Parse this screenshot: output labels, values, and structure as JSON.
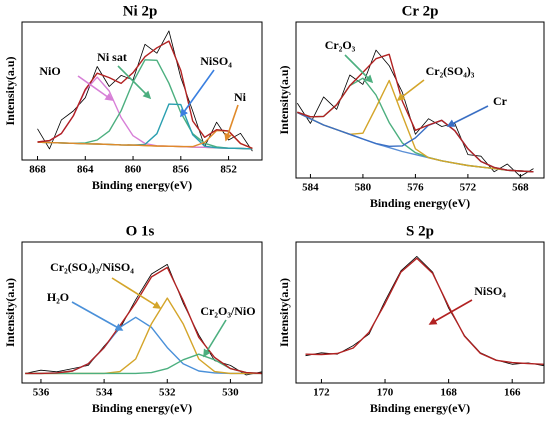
{
  "chart_data": [
    {
      "type": "line",
      "title": "Ni 2p",
      "xlabel": "Binding energy(eV)",
      "ylabel": "Intensity(a.u)",
      "xlim": [
        869.3,
        849.2
      ],
      "ylim": [
        0,
        62
      ],
      "xticks": [
        868,
        864,
        860,
        856,
        852
      ],
      "x": [
        868,
        867,
        866,
        865,
        864,
        863,
        862,
        861,
        860,
        859,
        858,
        857,
        856,
        855,
        854,
        853,
        852,
        851,
        850
      ],
      "series": [
        {
          "color": "#000000",
          "values": [
            14,
            5,
            18,
            22,
            28,
            42,
            33,
            38,
            36,
            52,
            48,
            58,
            37,
            22,
            6,
            17,
            9,
            12,
            4
          ]
        },
        {
          "color": "#d4a52a",
          "values": [
            8,
            7.8,
            7.7,
            7.5,
            7.3,
            7.2,
            7,
            6.8,
            6.7,
            6.5,
            6.3,
            6.2,
            6,
            5.8,
            5.7,
            5.5,
            5.3,
            5.2,
            5
          ]
        },
        {
          "color": "#d77fd7",
          "values": [
            8.1,
            8.7,
            11.9,
            19.8,
            31.3,
            37.2,
            31,
            19.1,
            10.9,
            7.4,
            6.4,
            6.2,
            6,
            5.8,
            5.7,
            5.5,
            5.3,
            5.2,
            5
          ]
        },
        {
          "color": "#4caf7f",
          "values": [
            8,
            7.8,
            7.7,
            7.5,
            7.7,
            9,
            13,
            22.1,
            35,
            45,
            44.8,
            34.5,
            21.3,
            11.8,
            7.5,
            5.9,
            5.3,
            5.2,
            5
          ]
        },
        {
          "color": "#2a9fb0",
          "values": [
            8,
            7.8,
            7.7,
            7.5,
            7.3,
            7.2,
            7,
            6.8,
            6.7,
            7,
            11.8,
            25.1,
            24.9,
            11.3,
            6.2,
            5.5,
            5.3,
            5.2,
            5
          ]
        },
        {
          "color": "#e08a2a",
          "values": [
            8,
            7.8,
            7.7,
            7.5,
            7.3,
            7.2,
            7,
            6.8,
            6.7,
            6.5,
            6.3,
            6.2,
            6,
            6,
            7.9,
            13.2,
            13,
            7.4,
            5.2
          ]
        },
        {
          "color": "#b22222",
          "values": [
            8.1,
            8.7,
            11.9,
            19.8,
            31.7,
            39,
            37,
            34.4,
            39.2,
            46.4,
            50.4,
            53.4,
            40.2,
            17.5,
            10.2,
            13.6,
            13,
            7.4,
            5.2
          ]
        }
      ],
      "annotations": [
        "NiO",
        "Ni sat",
        "NiSO₄",
        "Ni"
      ]
    },
    {
      "type": "line",
      "title": "Cr 2p",
      "xlabel": "Binding energy(eV)",
      "ylabel": "Intensity(a.u)",
      "xlim": [
        585.1,
        566.2
      ],
      "ylim": [
        0,
        100
      ],
      "xticks": [
        584,
        580,
        576,
        572,
        568
      ],
      "x": [
        585,
        584,
        583,
        582,
        581,
        580,
        579,
        578,
        577,
        576,
        575,
        574,
        573,
        572,
        571,
        570,
        569,
        568,
        567
      ],
      "series": [
        {
          "color": "#000000",
          "values": [
            48,
            35,
            52,
            44,
            66,
            60,
            82,
            72,
            55,
            28,
            38,
            33,
            35,
            15,
            14,
            4,
            9,
            1,
            6
          ]
        },
        {
          "color": "#5b8fd6",
          "values": [
            42,
            38,
            34,
            31,
            28,
            25,
            22,
            19.5,
            17,
            15,
            13,
            11,
            9.5,
            8,
            7,
            6,
            5,
            4.5,
            4
          ]
        },
        {
          "color": "#4caf7f",
          "values": [
            42.2,
            39.2,
            39.5,
            47,
            59.2,
            64,
            53.2,
            35.5,
            22.5,
            16.2,
            13.2,
            11,
            9.5,
            8,
            7,
            6,
            5,
            4.5,
            4
          ]
        },
        {
          "color": "#d4a52a",
          "values": [
            42,
            38,
            34,
            31,
            28,
            28.7,
            45.2,
            62.5,
            40.2,
            18.7,
            13,
            11,
            9.5,
            8,
            7,
            6,
            5,
            4.5,
            4
          ]
        },
        {
          "color": "#3a6fc4",
          "values": [
            42,
            38,
            34,
            31,
            28,
            25,
            22.1,
            20.3,
            20.6,
            25.7,
            33.8,
            37,
            30.3,
            18.7,
            10.6,
            6.8,
            5,
            4.5,
            4
          ]
        },
        {
          "color": "#b22222",
          "values": [
            42.2,
            39.2,
            39.5,
            47,
            59.2,
            67.7,
            76.5,
            79.3,
            49.3,
            30.6,
            34,
            37,
            30.3,
            18.7,
            10.6,
            6.8,
            5,
            4.5,
            4
          ]
        }
      ],
      "annotations": [
        "Cr₂O₃",
        "Cr₂(SO₄)₃",
        "Cr"
      ]
    },
    {
      "type": "line",
      "title": "O 1s",
      "xlabel": "Binding energy(eV)",
      "ylabel": "Intensity(a.u)",
      "xlim": [
        536.6,
        529.0
      ],
      "ylim": [
        0,
        88
      ],
      "xticks": [
        536,
        534,
        532,
        530
      ],
      "x": [
        536.5,
        536,
        535.5,
        535,
        534.5,
        534,
        533.5,
        533,
        532.5,
        532,
        531.5,
        531,
        530.5,
        530,
        529.5,
        529
      ],
      "series": [
        {
          "color": "#000000",
          "values": [
            6,
            8,
            7,
            9,
            11,
            23,
            34,
            52,
            68,
            74,
            50,
            30,
            14,
            11,
            5,
            7
          ]
        },
        {
          "color": "#4a90d9",
          "values": [
            6,
            6,
            6.3,
            7.5,
            12,
            22.1,
            34.7,
            41,
            34.7,
            22.1,
            12,
            7.5,
            6.3,
            6,
            6,
            6
          ]
        },
        {
          "color": "#d4a52a",
          "values": [
            6,
            6,
            6,
            6,
            6,
            6,
            7.1,
            15,
            37,
            53,
            37,
            15,
            7.1,
            6,
            6,
            6
          ]
        },
        {
          "color": "#4caf7f",
          "values": [
            6,
            6,
            6,
            6,
            6,
            6,
            6,
            6,
            6.5,
            9,
            14.5,
            18,
            14.5,
            9,
            6.5,
            6
          ]
        },
        {
          "color": "#b22222",
          "values": [
            6,
            6,
            6.3,
            7.5,
            12,
            22.1,
            35.8,
            50,
            66.2,
            72.1,
            51.5,
            28.5,
            15.9,
            9,
            6.5,
            6
          ]
        }
      ],
      "annotations": [
        "Cr₂(SO₄)₃/NiSO₄",
        "H₂O",
        "Cr₂O₃/NiO"
      ]
    },
    {
      "type": "line",
      "title": "S 2p",
      "xlabel": "Binding energy(eV)",
      "ylabel": "Intensity(a.u)",
      "xlim": [
        172.8,
        165.0
      ],
      "ylim": [
        0,
        98
      ],
      "xticks": [
        172,
        170,
        168,
        166
      ],
      "x": [
        172.5,
        172,
        171.5,
        171,
        170.5,
        170,
        169.5,
        169,
        168.5,
        168,
        167.5,
        167,
        166.5,
        166,
        165.5,
        165
      ],
      "series": [
        {
          "color": "#000000",
          "values": [
            19,
            21,
            20,
            26,
            34,
            57,
            78,
            88,
            77,
            52,
            33,
            21,
            16,
            13,
            14,
            12
          ]
        },
        {
          "color": "#b22222",
          "values": [
            20,
            19.8,
            20.5,
            24.3,
            35.3,
            55.2,
            77.1,
            86.7,
            76.2,
            53.3,
            32.5,
            20.6,
            15.8,
            14.2,
            13.5,
            13
          ]
        }
      ],
      "annotations": [
        "NiSO₄"
      ]
    }
  ]
}
